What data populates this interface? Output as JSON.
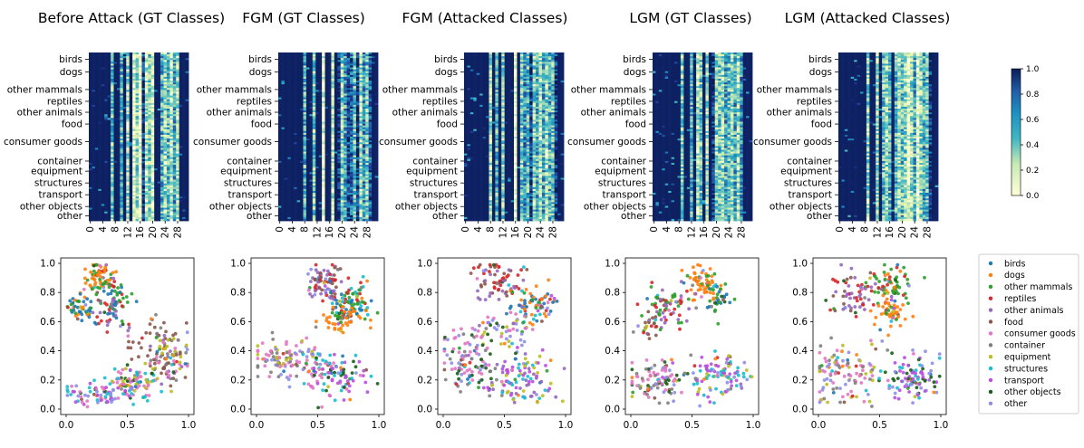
{
  "figure": {
    "panel_titles": [
      "Before Attack (GT Classes)",
      "FGM (GT Classes)",
      "FGM (Attacked Classes)",
      "LGM (GT Classes)",
      "LGM (Attacked Classes)"
    ]
  },
  "chart_data": [
    {
      "type": "heatmap",
      "panels": [
        "Before Attack (GT Classes)",
        "FGM (GT Classes)",
        "FGM (Attacked Classes)",
        "LGM (GT Classes)",
        "LGM (Attacked Classes)"
      ],
      "row_labels": [
        "birds",
        "dogs",
        "other mammals",
        "reptiles",
        "other animals",
        "food",
        "consumer goods",
        "container",
        "equipment",
        "structures",
        "transport",
        "other objects",
        "other"
      ],
      "x_ticks": [
        "0",
        "4",
        "8",
        "12",
        "16",
        "20",
        "24",
        "28"
      ],
      "x_range": [
        0,
        31
      ],
      "colorbar": {
        "min": 0.0,
        "max": 1.0,
        "ticks": [
          "0.0",
          "0.2",
          "0.4",
          "0.6",
          "0.8",
          "1.0"
        ],
        "colormap": "YlGnBu"
      },
      "profiles": {
        "Before Attack (GT Classes)": [
          0.98,
          0.97,
          0.98,
          0.97,
          0.98,
          0.97,
          0.98,
          0.45,
          0.98,
          0.97,
          0.5,
          0.98,
          0.3,
          0.98,
          0.1,
          0.35,
          0.05,
          0.9,
          0.25,
          0.4,
          0.15,
          0.98,
          0.97,
          0.5,
          0.3,
          0.45,
          0.2,
          0.55,
          0.25,
          0.98,
          0.97,
          0.98
        ],
        "FGM (GT Classes)": [
          0.98,
          0.97,
          0.98,
          0.97,
          0.98,
          0.97,
          0.98,
          0.98,
          0.5,
          0.98,
          0.97,
          0.4,
          0.98,
          0.97,
          0.1,
          0.98,
          0.97,
          0.2,
          0.98,
          0.9,
          0.35,
          0.55,
          0.85,
          0.75,
          0.45,
          0.9,
          0.3,
          0.6,
          0.4,
          0.75,
          0.98,
          0.97
        ],
        "FGM (Attacked Classes)": [
          0.98,
          0.97,
          0.98,
          0.97,
          0.98,
          0.97,
          0.98,
          0.98,
          0.3,
          0.98,
          0.5,
          0.97,
          0.35,
          0.98,
          0.97,
          0.98,
          0.06,
          0.98,
          0.4,
          0.6,
          0.45,
          0.9,
          0.35,
          0.5,
          0.25,
          0.55,
          0.3,
          0.5,
          0.45,
          0.9,
          0.98,
          0.97
        ],
        "LGM (GT Classes)": [
          0.98,
          0.97,
          0.98,
          0.97,
          0.98,
          0.97,
          0.98,
          0.98,
          0.98,
          0.4,
          0.98,
          0.97,
          0.5,
          0.98,
          0.25,
          0.45,
          0.98,
          0.3,
          0.98,
          0.9,
          0.35,
          0.4,
          0.3,
          0.55,
          0.45,
          0.35,
          0.55,
          0.3,
          0.6,
          0.98,
          0.97,
          0.98
        ],
        "LGM (Attacked Classes)": [
          0.98,
          0.97,
          0.98,
          0.97,
          0.98,
          0.97,
          0.98,
          0.98,
          0.98,
          0.35,
          0.98,
          0.97,
          0.3,
          0.98,
          0.45,
          0.3,
          0.5,
          0.97,
          0.5,
          0.25,
          0.45,
          0.35,
          0.1,
          0.3,
          0.5,
          0.1,
          0.35,
          0.5,
          0.45,
          0.9,
          0.98,
          0.97
        ]
      }
    },
    {
      "type": "scatter",
      "panels": [
        "Before Attack (GT Classes)",
        "FGM (GT Classes)",
        "FGM (Attacked Classes)",
        "LGM (GT Classes)",
        "LGM (Attacked Classes)"
      ],
      "xlim": [
        0.0,
        1.0
      ],
      "ylim": [
        0.0,
        1.0
      ],
      "x_ticks": [
        "0.0",
        "0.5",
        "1.0"
      ],
      "y_ticks": [
        "0.0",
        "0.2",
        "0.4",
        "0.6",
        "0.8",
        "1.0"
      ],
      "legend": {
        "placement": "right",
        "entries": [
          {
            "name": "birds",
            "color": "#1f77b4"
          },
          {
            "name": "dogs",
            "color": "#ff7f0e"
          },
          {
            "name": "other mammals",
            "color": "#2ca02c"
          },
          {
            "name": "reptiles",
            "color": "#d62728"
          },
          {
            "name": "other animals",
            "color": "#9467bd"
          },
          {
            "name": "food",
            "color": "#8c564b"
          },
          {
            "name": "consumer goods",
            "color": "#e377c2"
          },
          {
            "name": "container",
            "color": "#7f7f7f"
          },
          {
            "name": "equipment",
            "color": "#bcbd22"
          },
          {
            "name": "structures",
            "color": "#17becf"
          },
          {
            "name": "transport",
            "color": "#b94ee0"
          },
          {
            "name": "other objects",
            "color": "#1a5e1a"
          },
          {
            "name": "other",
            "color": "#8e8ee8"
          }
        ]
      },
      "clusters": {
        "Before Attack (GT Classes)": [
          {
            "center": [
              0.27,
              0.9
            ],
            "spread": [
              0.06,
              0.05
            ],
            "count": 70,
            "weights": {
              "dogs": 7,
              "other mammals": 2,
              "reptiles": 1
            }
          },
          {
            "center": [
              0.4,
              0.78
            ],
            "spread": [
              0.06,
              0.05
            ],
            "count": 40,
            "weights": {
              "other mammals": 6,
              "birds": 2,
              "reptiles": 2
            }
          },
          {
            "center": [
              0.12,
              0.7
            ],
            "spread": [
              0.06,
              0.05
            ],
            "count": 45,
            "weights": {
              "birds": 5,
              "other mammals": 4,
              "dogs": 1
            }
          },
          {
            "center": [
              0.35,
              0.66
            ],
            "spread": [
              0.07,
              0.05
            ],
            "count": 40,
            "weights": {
              "reptiles": 4,
              "other animals": 4,
              "birds": 2
            }
          },
          {
            "center": [
              0.75,
              0.45
            ],
            "spread": [
              0.12,
              0.08
            ],
            "count": 60,
            "weights": {
              "food": 5,
              "other animals": 2,
              "container": 2
            }
          },
          {
            "center": [
              0.85,
              0.32
            ],
            "spread": [
              0.08,
              0.08
            ],
            "count": 60,
            "weights": {
              "food": 3,
              "consumer goods": 3,
              "equipment": 2,
              "container": 2
            }
          },
          {
            "center": [
              0.6,
              0.2
            ],
            "spread": [
              0.12,
              0.06
            ],
            "count": 80,
            "weights": {
              "consumer goods": 3,
              "equipment": 3,
              "other objects": 2,
              "structures": 2
            }
          },
          {
            "center": [
              0.28,
              0.11
            ],
            "spread": [
              0.14,
              0.04
            ],
            "count": 90,
            "weights": {
              "transport": 3,
              "structures": 3,
              "other": 3,
              "consumer goods": 2
            }
          }
        ],
        "FGM (GT Classes)": [
          {
            "center": [
              0.55,
              0.88
            ],
            "spread": [
              0.08,
              0.07
            ],
            "count": 80,
            "weights": {
              "reptiles": 3,
              "other animals": 3,
              "food": 2,
              "other": 2
            }
          },
          {
            "center": [
              0.78,
              0.73
            ],
            "spread": [
              0.09,
              0.06
            ],
            "count": 80,
            "weights": {
              "birds": 3,
              "other mammals": 3,
              "reptiles": 2,
              "structures": 2
            }
          },
          {
            "center": [
              0.7,
              0.62
            ],
            "spread": [
              0.08,
              0.05
            ],
            "count": 60,
            "weights": {
              "dogs": 7,
              "other mammals": 2
            }
          },
          {
            "center": [
              0.25,
              0.35
            ],
            "spread": [
              0.16,
              0.07
            ],
            "count": 110,
            "weights": {
              "consumer goods": 3,
              "container": 2,
              "equipment": 2,
              "other": 2
            }
          },
          {
            "center": [
              0.65,
              0.22
            ],
            "spread": [
              0.13,
              0.08
            ],
            "count": 110,
            "weights": {
              "transport": 3,
              "consumer goods": 2,
              "structures": 2,
              "other objects": 2
            }
          }
        ],
        "FGM (Attacked Classes)": [
          {
            "center": [
              0.45,
              0.88
            ],
            "spread": [
              0.1,
              0.07
            ],
            "count": 70,
            "weights": {
              "reptiles": 3,
              "other animals": 3,
              "food": 2
            }
          },
          {
            "center": [
              0.75,
              0.72
            ],
            "spread": [
              0.09,
              0.08
            ],
            "count": 80,
            "weights": {
              "birds": 3,
              "dogs": 3,
              "other mammals": 2,
              "structures": 2
            }
          },
          {
            "center": [
              0.5,
              0.55
            ],
            "spread": [
              0.12,
              0.07
            ],
            "count": 50,
            "weights": {
              "other": 3,
              "consumer goods": 2,
              "equipment": 2
            }
          },
          {
            "center": [
              0.25,
              0.32
            ],
            "spread": [
              0.15,
              0.1
            ],
            "count": 120,
            "weights": {
              "consumer goods": 3,
              "container": 2,
              "other objects": 2,
              "other": 2
            }
          },
          {
            "center": [
              0.65,
              0.22
            ],
            "spread": [
              0.12,
              0.08
            ],
            "count": 100,
            "weights": {
              "transport": 3,
              "structures": 2,
              "other animals": 2,
              "equipment": 2
            }
          }
        ],
        "LGM (GT Classes)": [
          {
            "center": [
              0.58,
              0.86
            ],
            "spread": [
              0.07,
              0.06
            ],
            "count": 60,
            "weights": {
              "dogs": 7,
              "other mammals": 2
            }
          },
          {
            "center": [
              0.72,
              0.76
            ],
            "spread": [
              0.05,
              0.06
            ],
            "count": 35,
            "weights": {
              "birds": 5,
              "other mammals": 4
            }
          },
          {
            "center": [
              0.28,
              0.7
            ],
            "spread": [
              0.09,
              0.07
            ],
            "count": 70,
            "weights": {
              "reptiles": 4,
              "other animals": 3,
              "other mammals": 2
            }
          },
          {
            "center": [
              0.15,
              0.55
            ],
            "spread": [
              0.05,
              0.06
            ],
            "count": 25,
            "weights": {
              "food": 6,
              "reptiles": 2
            }
          },
          {
            "center": [
              0.22,
              0.2
            ],
            "spread": [
              0.14,
              0.07
            ],
            "count": 100,
            "weights": {
              "consumer goods": 3,
              "container": 2,
              "other": 2,
              "other objects": 2
            }
          },
          {
            "center": [
              0.72,
              0.22
            ],
            "spread": [
              0.12,
              0.08
            ],
            "count": 100,
            "weights": {
              "transport": 3,
              "structures": 2,
              "other": 2,
              "equipment": 2
            }
          }
        ],
        "LGM (Attacked Classes)": [
          {
            "center": [
              0.6,
              0.86
            ],
            "spread": [
              0.1,
              0.07
            ],
            "count": 70,
            "weights": {
              "other mammals": 4,
              "reptiles": 2,
              "dogs": 2
            }
          },
          {
            "center": [
              0.6,
              0.66
            ],
            "spread": [
              0.08,
              0.06
            ],
            "count": 50,
            "weights": {
              "dogs": 7,
              "other mammals": 1
            }
          },
          {
            "center": [
              0.25,
              0.78
            ],
            "spread": [
              0.1,
              0.08
            ],
            "count": 60,
            "weights": {
              "reptiles": 3,
              "other animals": 3,
              "food": 2
            }
          },
          {
            "center": [
              0.22,
              0.25
            ],
            "spread": [
              0.15,
              0.1
            ],
            "count": 110,
            "weights": {
              "consumer goods": 3,
              "container": 2,
              "other": 2,
              "equipment": 2
            }
          },
          {
            "center": [
              0.75,
              0.22
            ],
            "spread": [
              0.12,
              0.08
            ],
            "count": 100,
            "weights": {
              "transport": 3,
              "structures": 2,
              "other objects": 2,
              "other": 2
            }
          }
        ]
      }
    }
  ]
}
